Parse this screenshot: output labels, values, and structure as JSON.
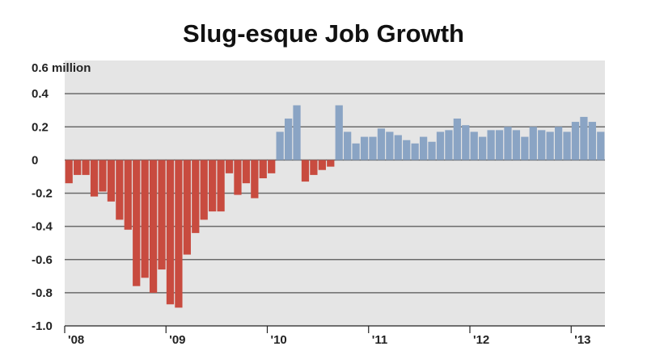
{
  "chart_data": {
    "type": "bar",
    "title": "Slug-esque Job Growth",
    "ylabel": "",
    "xlabel": "",
    "ylim": [
      -1.0,
      0.6
    ],
    "yticks": [
      {
        "value": 0.6,
        "label": "0.6 million"
      },
      {
        "value": 0.4,
        "label": "0.4"
      },
      {
        "value": 0.2,
        "label": "0.2"
      },
      {
        "value": 0,
        "label": "0"
      },
      {
        "value": -0.2,
        "label": "-0.2"
      },
      {
        "value": -0.4,
        "label": "-0.4"
      },
      {
        "value": -0.6,
        "label": "-0.6"
      },
      {
        "value": -0.8,
        "label": "-0.8"
      },
      {
        "value": -1.0,
        "label": "-1.0"
      }
    ],
    "xticks": [
      {
        "index": 0,
        "label": "'08"
      },
      {
        "index": 12,
        "label": "'09"
      },
      {
        "index": 24,
        "label": "'10"
      },
      {
        "index": 36,
        "label": "'11"
      },
      {
        "index": 48,
        "label": "'12"
      },
      {
        "index": 60,
        "label": "'13"
      }
    ],
    "grid": true,
    "colors": {
      "negative": "#c84b3f",
      "positive": "#8aa4c4",
      "plot_background": "#e5e5e5",
      "gridline": "#6a6a6a"
    },
    "values": [
      -0.14,
      -0.09,
      -0.09,
      -0.22,
      -0.19,
      -0.25,
      -0.36,
      -0.42,
      -0.76,
      -0.71,
      -0.8,
      -0.66,
      -0.87,
      -0.89,
      -0.57,
      -0.44,
      -0.36,
      -0.31,
      -0.31,
      -0.08,
      -0.21,
      -0.14,
      -0.23,
      -0.11,
      -0.08,
      0.17,
      0.25,
      0.33,
      -0.13,
      -0.09,
      -0.06,
      -0.04,
      0.33,
      0.17,
      0.1,
      0.14,
      0.14,
      0.19,
      0.17,
      0.15,
      0.12,
      0.1,
      0.14,
      0.11,
      0.17,
      0.18,
      0.25,
      0.21,
      0.17,
      0.14,
      0.18,
      0.18,
      0.2,
      0.18,
      0.14,
      0.2,
      0.18,
      0.17,
      0.2,
      0.17,
      0.23,
      0.26,
      0.23,
      0.17
    ]
  }
}
